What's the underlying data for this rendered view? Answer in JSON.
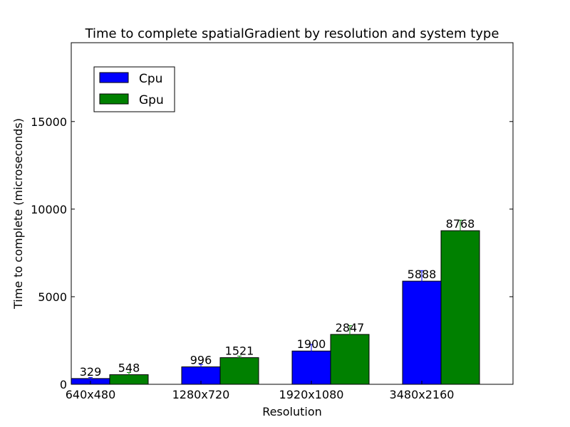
{
  "chart_data": {
    "type": "bar",
    "title": "Time to complete spatialGradient by resolution and system type",
    "xlabel": "Resolution",
    "ylabel": "Time to complete (microseconds)",
    "categories": [
      "640x480",
      "1280x720",
      "1920x1080",
      "3480x2160"
    ],
    "ylim": [
      0,
      19500
    ],
    "yticks": [
      0,
      5000,
      10000,
      15000
    ],
    "ytick_labels": [
      "0",
      "5000",
      "10000",
      "15000"
    ],
    "grid": false,
    "legend_position": "upper-left",
    "series": [
      {
        "name": "Cpu",
        "color": "#0000ff",
        "values": [
          329,
          996,
          1900,
          5888
        ],
        "value_labels": [
          "329",
          "996",
          "1900",
          "5888"
        ],
        "error": [
          60,
          130,
          380,
          600
        ]
      },
      {
        "name": "Gpu",
        "color": "#008000",
        "values": [
          548,
          1521,
          2847,
          8768
        ],
        "value_labels": [
          "548",
          "1521",
          "2847",
          "8768"
        ],
        "error": [
          120,
          90,
          500,
          600
        ]
      }
    ]
  }
}
